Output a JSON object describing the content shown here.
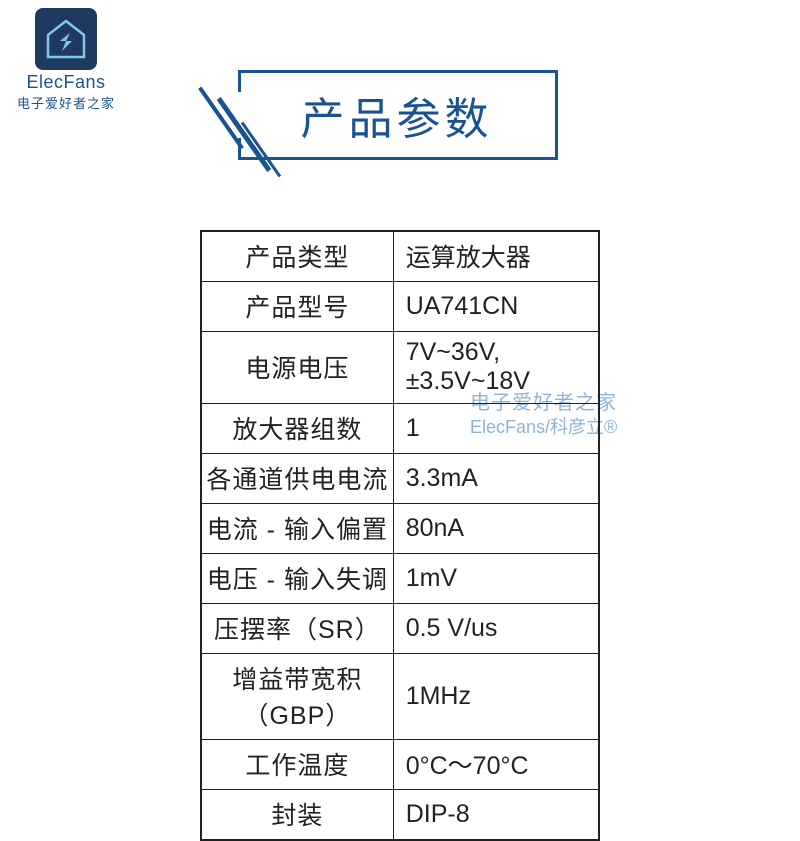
{
  "logo": {
    "text_en": "ElecFans",
    "text_cn": "电子爱好者之家",
    "bg_color": "#1e3a5f",
    "stroke_color": "#7fc8e8"
  },
  "title": {
    "text": "产品参数",
    "border_color": "#1a5490",
    "text_color": "#1a5490",
    "fontsize": 44
  },
  "watermark": {
    "line1": "电子爱好者之家",
    "line2": "ElecFans/科彦立®",
    "color": "#7aa8d4"
  },
  "table": {
    "border_color": "#222222",
    "cell_fontsize": 25,
    "label_width": 268,
    "value_width": 268,
    "rows": [
      {
        "label": "产品类型",
        "value": "运算放大器"
      },
      {
        "label": "产品型号",
        "value": "UA741CN"
      },
      {
        "label": "电源电压",
        "value": "7V~36V,±3.5V~18V"
      },
      {
        "label": "放大器组数",
        "value": "1"
      },
      {
        "label": "各通道供电电流",
        "value": "3.3mA"
      },
      {
        "label": "电流 - 输入偏置",
        "value": "80nA"
      },
      {
        "label": "电压 - 输入失调",
        "value": "1mV"
      },
      {
        "label": "压摆率（SR）",
        "value": "0.5 V/us"
      },
      {
        "label": "增益带宽积（GBP）",
        "value": "1MHz"
      },
      {
        "label": "工作温度",
        "value": "0°C～70°C"
      },
      {
        "label": "封装",
        "value": "DIP-8"
      }
    ]
  }
}
